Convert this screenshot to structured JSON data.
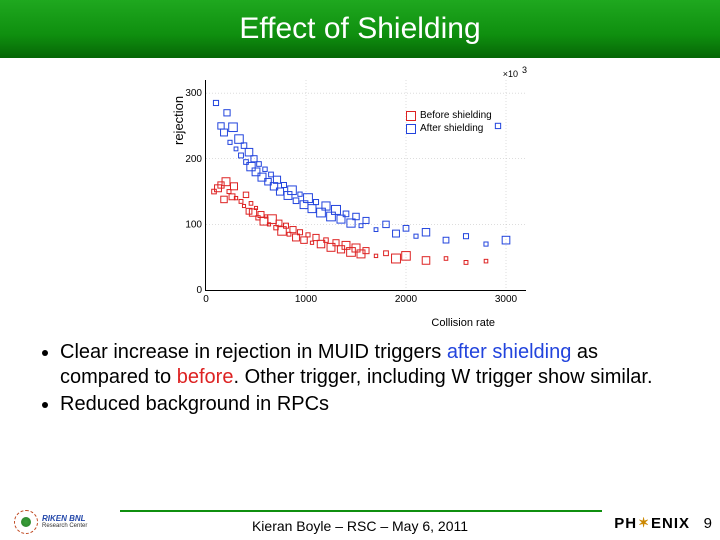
{
  "slide": {
    "title": "Effect of Shielding",
    "footer_text": "Kieran Boyle – RSC – May 6, 2011",
    "page_number": "9"
  },
  "logos": {
    "left_name": "RIKEN BNL",
    "left_sub": "Research Center",
    "right_ph": "PH",
    "right_enix": "ENIX"
  },
  "chart": {
    "type": "scatter",
    "y_label": "rejection",
    "x_label": "Collision rate",
    "x_suffix": "×10",
    "x_exp": "3",
    "xlim": [
      0,
      3200
    ],
    "ylim": [
      0,
      320
    ],
    "xticks": [
      0,
      1000,
      2000,
      3000
    ],
    "yticks": [
      0,
      100,
      200,
      300
    ],
    "grid_color": "#bbbbbb",
    "grid_on": true,
    "background_color": "#ffffff",
    "marker_shape": "square",
    "marker_size_min": 3,
    "marker_size_max": 9,
    "series": [
      {
        "name": "Before shielding",
        "color": "#dd2222",
        "points": [
          [
            80,
            150
          ],
          [
            120,
            155
          ],
          [
            150,
            160
          ],
          [
            180,
            138
          ],
          [
            200,
            165
          ],
          [
            230,
            150
          ],
          [
            260,
            142
          ],
          [
            280,
            158
          ],
          [
            300,
            140
          ],
          [
            350,
            135
          ],
          [
            380,
            128
          ],
          [
            400,
            145
          ],
          [
            430,
            120
          ],
          [
            450,
            132
          ],
          [
            470,
            118
          ],
          [
            500,
            125
          ],
          [
            520,
            110
          ],
          [
            550,
            115
          ],
          [
            580,
            105
          ],
          [
            600,
            112
          ],
          [
            630,
            100
          ],
          [
            660,
            108
          ],
          [
            700,
            95
          ],
          [
            730,
            102
          ],
          [
            760,
            90
          ],
          [
            800,
            98
          ],
          [
            830,
            85
          ],
          [
            870,
            92
          ],
          [
            900,
            80
          ],
          [
            940,
            88
          ],
          [
            980,
            76
          ],
          [
            1020,
            84
          ],
          [
            1060,
            72
          ],
          [
            1100,
            80
          ],
          [
            1150,
            70
          ],
          [
            1200,
            76
          ],
          [
            1250,
            65
          ],
          [
            1300,
            72
          ],
          [
            1350,
            62
          ],
          [
            1400,
            68
          ],
          [
            1450,
            58
          ],
          [
            1500,
            64
          ],
          [
            1550,
            55
          ],
          [
            1600,
            60
          ],
          [
            1700,
            52
          ],
          [
            1800,
            56
          ],
          [
            1900,
            48
          ],
          [
            2000,
            52
          ],
          [
            2200,
            45
          ],
          [
            2400,
            48
          ],
          [
            2600,
            42
          ],
          [
            2800,
            44
          ]
        ]
      },
      {
        "name": "After shielding",
        "color": "#2244dd",
        "points": [
          [
            100,
            285
          ],
          [
            150,
            250
          ],
          [
            180,
            240
          ],
          [
            210,
            270
          ],
          [
            240,
            225
          ],
          [
            270,
            248
          ],
          [
            300,
            215
          ],
          [
            330,
            230
          ],
          [
            350,
            205
          ],
          [
            380,
            220
          ],
          [
            400,
            195
          ],
          [
            430,
            210
          ],
          [
            450,
            188
          ],
          [
            480,
            200
          ],
          [
            500,
            180
          ],
          [
            530,
            192
          ],
          [
            560,
            172
          ],
          [
            590,
            184
          ],
          [
            620,
            165
          ],
          [
            650,
            176
          ],
          [
            680,
            158
          ],
          [
            710,
            168
          ],
          [
            740,
            150
          ],
          [
            780,
            160
          ],
          [
            820,
            144
          ],
          [
            860,
            152
          ],
          [
            900,
            136
          ],
          [
            940,
            146
          ],
          [
            980,
            130
          ],
          [
            1020,
            140
          ],
          [
            1060,
            124
          ],
          [
            1100,
            134
          ],
          [
            1150,
            118
          ],
          [
            1200,
            128
          ],
          [
            1250,
            112
          ],
          [
            1300,
            122
          ],
          [
            1350,
            108
          ],
          [
            1400,
            116
          ],
          [
            1450,
            102
          ],
          [
            1500,
            112
          ],
          [
            1550,
            98
          ],
          [
            1600,
            106
          ],
          [
            1700,
            92
          ],
          [
            1800,
            100
          ],
          [
            1900,
            86
          ],
          [
            2000,
            94
          ],
          [
            2100,
            82
          ],
          [
            2200,
            88
          ],
          [
            2400,
            76
          ],
          [
            2600,
            82
          ],
          [
            2800,
            70
          ],
          [
            3000,
            76
          ],
          [
            2920,
            250
          ]
        ]
      }
    ]
  },
  "bullets": [
    {
      "pre": "Clear increase in rejection in MUID triggers ",
      "hl1": "after shielding",
      "mid": " as compared to ",
      "hl2": "before",
      "post": ".  Other trigger, including W trigger show similar."
    },
    {
      "pre": "Reduced background in RPCs",
      "hl1": "",
      "mid": "",
      "hl2": "",
      "post": ""
    }
  ],
  "colors": {
    "header_top": "#1fa81f",
    "header_bottom": "#066606",
    "footer_line": "#0f8f0f",
    "highlight1": "#2244dd",
    "highlight2": "#dd2222"
  }
}
